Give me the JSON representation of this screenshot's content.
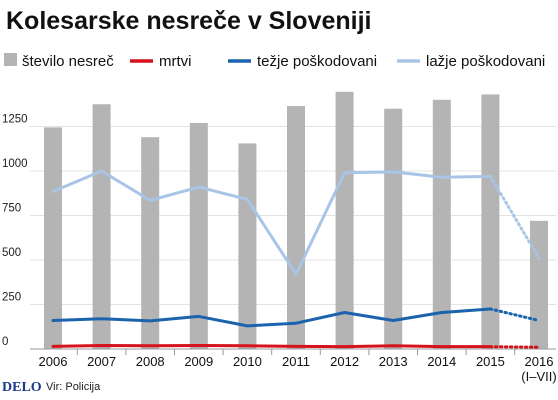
{
  "title": "Kolesarske nesreče v Sloveniji",
  "footer": {
    "logo": "DELO",
    "source": "Vir: Policija"
  },
  "colors": {
    "bars": "#b4b4b4",
    "mrtvi": "#d6131b",
    "tezje": "#1b64ad",
    "lazje": "#a9c5e6",
    "grid": "#e3e3e3"
  },
  "chart_data": {
    "type": "bar",
    "categories": [
      "2006",
      "2007",
      "2008",
      "2009",
      "2010",
      "2011",
      "2012",
      "2013",
      "2014",
      "2015",
      "2016\n(I–VII)"
    ],
    "ylim": [
      0,
      1500
    ],
    "yticks": [
      0,
      250,
      500,
      750,
      1000,
      1250
    ],
    "grid": true,
    "legend": "top",
    "series": [
      {
        "name": "število nesreč",
        "type": "bar",
        "color": "#b4b4b4",
        "values": [
          1245,
          1375,
          1190,
          1270,
          1155,
          1365,
          1445,
          1350,
          1400,
          1430,
          720
        ]
      },
      {
        "name": "mrtvi",
        "type": "line",
        "color": "#d6131b",
        "dashed_last": true,
        "values": [
          15,
          20,
          18,
          20,
          18,
          15,
          13,
          18,
          13,
          13,
          10
        ]
      },
      {
        "name": "težje poškodovani",
        "type": "line",
        "color": "#1b64ad",
        "dashed_last": true,
        "values": [
          160,
          170,
          158,
          183,
          130,
          145,
          205,
          160,
          205,
          225,
          160
        ]
      },
      {
        "name": "lažje poškodovani",
        "type": "line",
        "color": "#a9c5e6",
        "dashed_last": true,
        "values": [
          885,
          1000,
          835,
          910,
          840,
          420,
          990,
          995,
          965,
          970,
          510
        ]
      }
    ]
  }
}
